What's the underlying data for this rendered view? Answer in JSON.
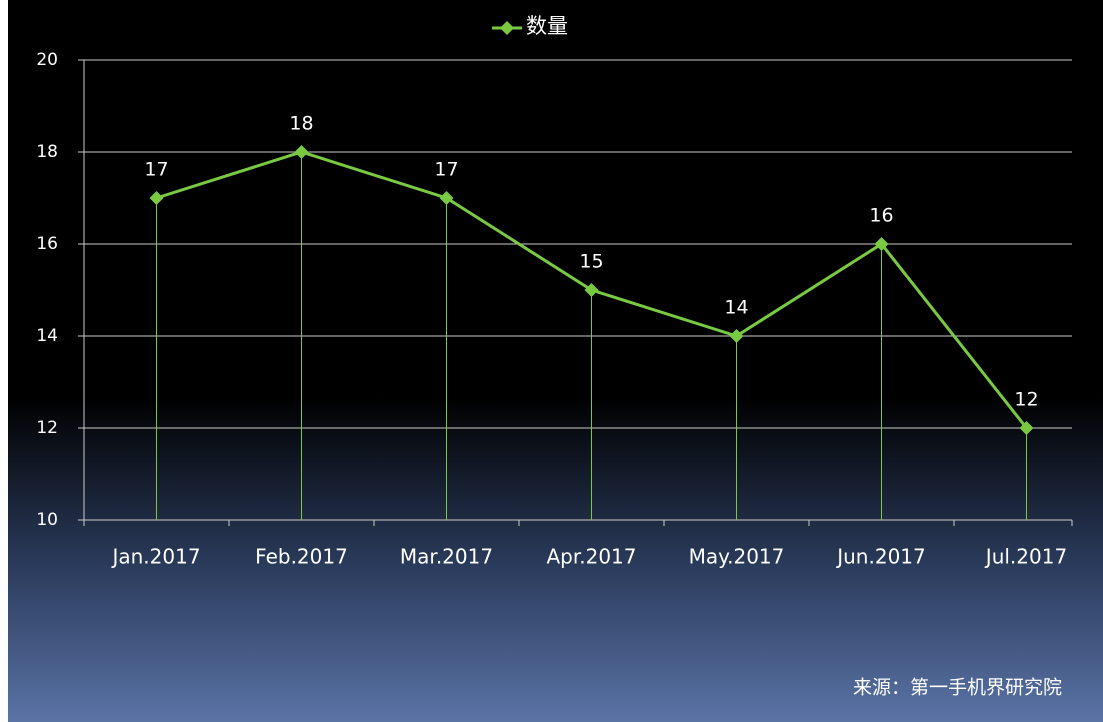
{
  "chart_data": {
    "type": "line",
    "categories": [
      "Jan.2017",
      "Feb.2017",
      "Mar.2017",
      "Apr.2017",
      "May.2017",
      "Jun.2017",
      "Jul.2017"
    ],
    "series": [
      {
        "name": "数量",
        "color": "#7ac943",
        "values": [
          17,
          18,
          17,
          15,
          14,
          16,
          12
        ]
      }
    ],
    "ylim": [
      10,
      20
    ],
    "yticks": [
      10,
      12,
      14,
      16,
      18,
      20
    ],
    "grid": true,
    "legend": "top",
    "annotation": "来源：第一手机界研究院"
  }
}
